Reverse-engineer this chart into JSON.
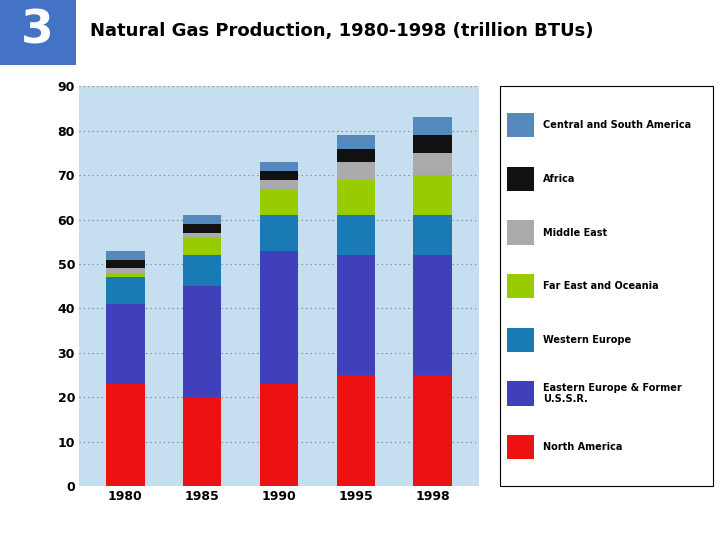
{
  "title": "Natural Gas Production, 1980-1998 (trillion BTUs)",
  "slide_number": "3",
  "years": [
    "1980",
    "1985",
    "1990",
    "1995",
    "1998"
  ],
  "categories": [
    "North America",
    "Eastern Europe & Former U.S.S.R.",
    "Western Europe",
    "Far East and Oceania",
    "Middle East",
    "Africa",
    "Central and South America"
  ],
  "colors": [
    "#ee1111",
    "#4040bb",
    "#1a7ab5",
    "#99cc00",
    "#aaaaaa",
    "#111111",
    "#5588bb"
  ],
  "values": {
    "North America": [
      23,
      20,
      23,
      25,
      25
    ],
    "Eastern Europe & Former U.S.S.R.": [
      18,
      25,
      30,
      27,
      27
    ],
    "Western Europe": [
      6,
      7,
      8,
      9,
      9
    ],
    "Far East and Oceania": [
      1,
      4,
      6,
      8,
      9
    ],
    "Middle East": [
      1,
      1,
      2,
      4,
      5
    ],
    "Africa": [
      2,
      2,
      2,
      3,
      4
    ],
    "Central and South America": [
      2,
      2,
      2,
      3,
      4
    ]
  },
  "ylim": [
    0,
    90
  ],
  "yticks": [
    0,
    10,
    20,
    30,
    40,
    50,
    60,
    70,
    80,
    90
  ],
  "plot_bg_color": "#c5dff0",
  "fig_bg_color": "#ffffff",
  "grid_color": "#777777",
  "bar_width": 0.5,
  "legend_labels": [
    "Central and South America",
    "Africa",
    "Middle East",
    "Far East and Oceania",
    "Western Europe",
    "Eastern Europe & Former\nU.S.S.R.",
    "North America"
  ],
  "legend_colors": [
    "#5588bb",
    "#111111",
    "#aaaaaa",
    "#99cc00",
    "#1a7ab5",
    "#4040bb",
    "#ee1111"
  ],
  "header_bg": "#4472c4",
  "header_text_color": "#000000",
  "slide_num_color": "#ffffff"
}
